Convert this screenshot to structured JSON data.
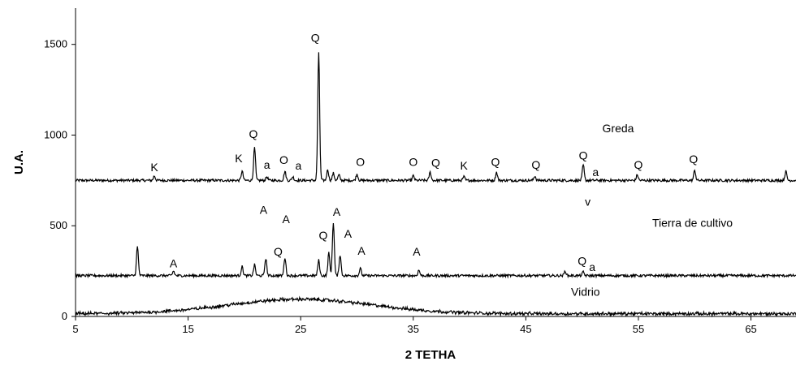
{
  "chart_data": {
    "type": "line",
    "title": "",
    "xlabel": "2 TETHA",
    "ylabel": "U.A.",
    "xlim": [
      5,
      69
    ],
    "ylim": [
      0,
      1700
    ],
    "x_ticks": [
      5,
      15,
      25,
      35,
      45,
      55,
      65
    ],
    "y_ticks": [
      0,
      500,
      1000,
      1500
    ],
    "grid": false,
    "series": [
      {
        "name": "Greda",
        "baseline": 750,
        "peaks": [
          {
            "x": 12.0,
            "y": 775
          },
          {
            "x": 19.8,
            "y": 800
          },
          {
            "x": 20.9,
            "y": 930
          },
          {
            "x": 22.0,
            "y": 770
          },
          {
            "x": 23.6,
            "y": 800
          },
          {
            "x": 24.3,
            "y": 770
          },
          {
            "x": 26.6,
            "y": 1450
          },
          {
            "x": 27.4,
            "y": 810
          },
          {
            "x": 27.9,
            "y": 790
          },
          {
            "x": 28.4,
            "y": 780
          },
          {
            "x": 30.0,
            "y": 785
          },
          {
            "x": 35.0,
            "y": 775
          },
          {
            "x": 36.5,
            "y": 795
          },
          {
            "x": 39.5,
            "y": 770
          },
          {
            "x": 42.4,
            "y": 795
          },
          {
            "x": 45.8,
            "y": 775
          },
          {
            "x": 50.1,
            "y": 835
          },
          {
            "x": 54.9,
            "y": 780
          },
          {
            "x": 60.0,
            "y": 805
          },
          {
            "x": 68.1,
            "y": 800
          }
        ]
      },
      {
        "name": "Tierra de cultivo",
        "baseline": 225,
        "peaks": [
          {
            "x": 10.5,
            "y": 385
          },
          {
            "x": 13.7,
            "y": 250
          },
          {
            "x": 19.8,
            "y": 275
          },
          {
            "x": 20.9,
            "y": 285
          },
          {
            "x": 21.9,
            "y": 320
          },
          {
            "x": 23.6,
            "y": 325
          },
          {
            "x": 26.6,
            "y": 310
          },
          {
            "x": 27.5,
            "y": 350
          },
          {
            "x": 27.9,
            "y": 520
          },
          {
            "x": 28.5,
            "y": 340
          },
          {
            "x": 30.3,
            "y": 265
          },
          {
            "x": 35.5,
            "y": 255
          },
          {
            "x": 48.5,
            "y": 250
          },
          {
            "x": 50.1,
            "y": 245
          }
        ]
      },
      {
        "name": "Vidrio",
        "baseline": 15,
        "hump": {
          "center": 25,
          "height": 80
        }
      }
    ],
    "annotations": [
      {
        "text": "K",
        "x": 12.0,
        "y": 800
      },
      {
        "text": "K",
        "x": 19.5,
        "y": 850
      },
      {
        "text": "Q",
        "x": 20.8,
        "y": 985
      },
      {
        "text": "a",
        "x": 22.0,
        "y": 815
      },
      {
        "text": "O",
        "x": 23.5,
        "y": 840
      },
      {
        "text": "a",
        "x": 24.8,
        "y": 810
      },
      {
        "text": "Q",
        "x": 26.3,
        "y": 1515
      },
      {
        "text": "O",
        "x": 30.3,
        "y": 830
      },
      {
        "text": "O",
        "x": 35.0,
        "y": 830
      },
      {
        "text": "Q",
        "x": 37.0,
        "y": 825
      },
      {
        "text": "K",
        "x": 39.5,
        "y": 810
      },
      {
        "text": "Q",
        "x": 42.3,
        "y": 830
      },
      {
        "text": "Q",
        "x": 45.9,
        "y": 815
      },
      {
        "text": "Q",
        "x": 50.1,
        "y": 865
      },
      {
        "text": "a",
        "x": 51.2,
        "y": 775
      },
      {
        "text": "Q",
        "x": 55.0,
        "y": 815
      },
      {
        "text": "Q",
        "x": 59.9,
        "y": 845
      },
      {
        "text": "v",
        "x": 50.5,
        "y": 610
      },
      {
        "text": "A",
        "x": 13.7,
        "y": 270
      },
      {
        "text": "A",
        "x": 21.7,
        "y": 565
      },
      {
        "text": "Q",
        "x": 23.0,
        "y": 335
      },
      {
        "text": "A",
        "x": 23.7,
        "y": 515
      },
      {
        "text": "Q",
        "x": 27.0,
        "y": 425
      },
      {
        "text": "A",
        "x": 28.2,
        "y": 555
      },
      {
        "text": "A",
        "x": 29.2,
        "y": 435
      },
      {
        "text": "A",
        "x": 30.4,
        "y": 340
      },
      {
        "text": "A",
        "x": 35.3,
        "y": 335
      },
      {
        "text": "Q",
        "x": 50.0,
        "y": 285
      },
      {
        "text": "a",
        "x": 50.9,
        "y": 250
      }
    ],
    "series_labels": [
      {
        "text": "Greda",
        "x": 53.2,
        "y": 1015
      },
      {
        "text": "Tierra de cultivo",
        "x": 59.8,
        "y": 495
      },
      {
        "text": "Vidrio",
        "x": 50.3,
        "y": 113
      }
    ]
  }
}
